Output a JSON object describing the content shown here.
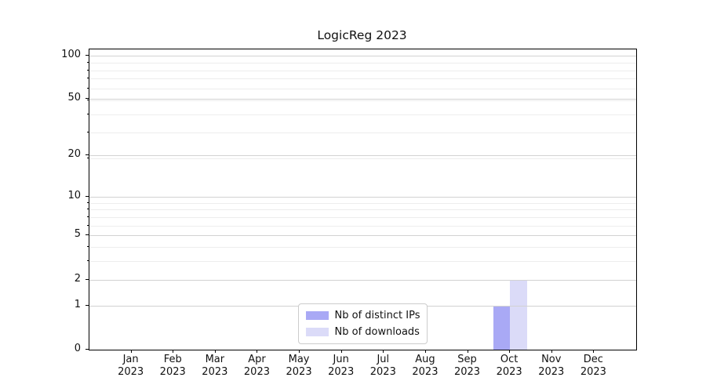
{
  "title": "LogicReg 2023",
  "chart_data": {
    "type": "bar",
    "title": "LogicReg 2023",
    "categories": [
      "Jan",
      "Feb",
      "Mar",
      "Apr",
      "May",
      "Jun",
      "Jul",
      "Aug",
      "Sep",
      "Oct",
      "Nov",
      "Dec"
    ],
    "category_year": "2023",
    "series": [
      {
        "name": "Nb of distinct IPs",
        "color": "#a9a9f5",
        "values": [
          0,
          0,
          0,
          0,
          0,
          0,
          0,
          0,
          0,
          1,
          0,
          0
        ]
      },
      {
        "name": "Nb of downloads",
        "color": "#dbdbf8",
        "values": [
          0,
          0,
          0,
          0,
          0,
          0,
          0,
          0,
          0,
          2,
          0,
          0
        ]
      }
    ],
    "y_axis": {
      "scale": "log1p",
      "ticks": [
        0,
        1,
        2,
        5,
        10,
        20,
        50,
        100
      ],
      "minor_ticks": [
        3,
        4,
        6,
        7,
        8,
        9,
        19,
        29,
        39,
        49,
        59,
        69,
        79,
        89
      ],
      "max": 110
    },
    "xlabel": "",
    "ylabel": "",
    "grid": true,
    "legend": {
      "position": "lower center",
      "items": [
        "Nb of distinct IPs",
        "Nb of downloads"
      ]
    }
  }
}
